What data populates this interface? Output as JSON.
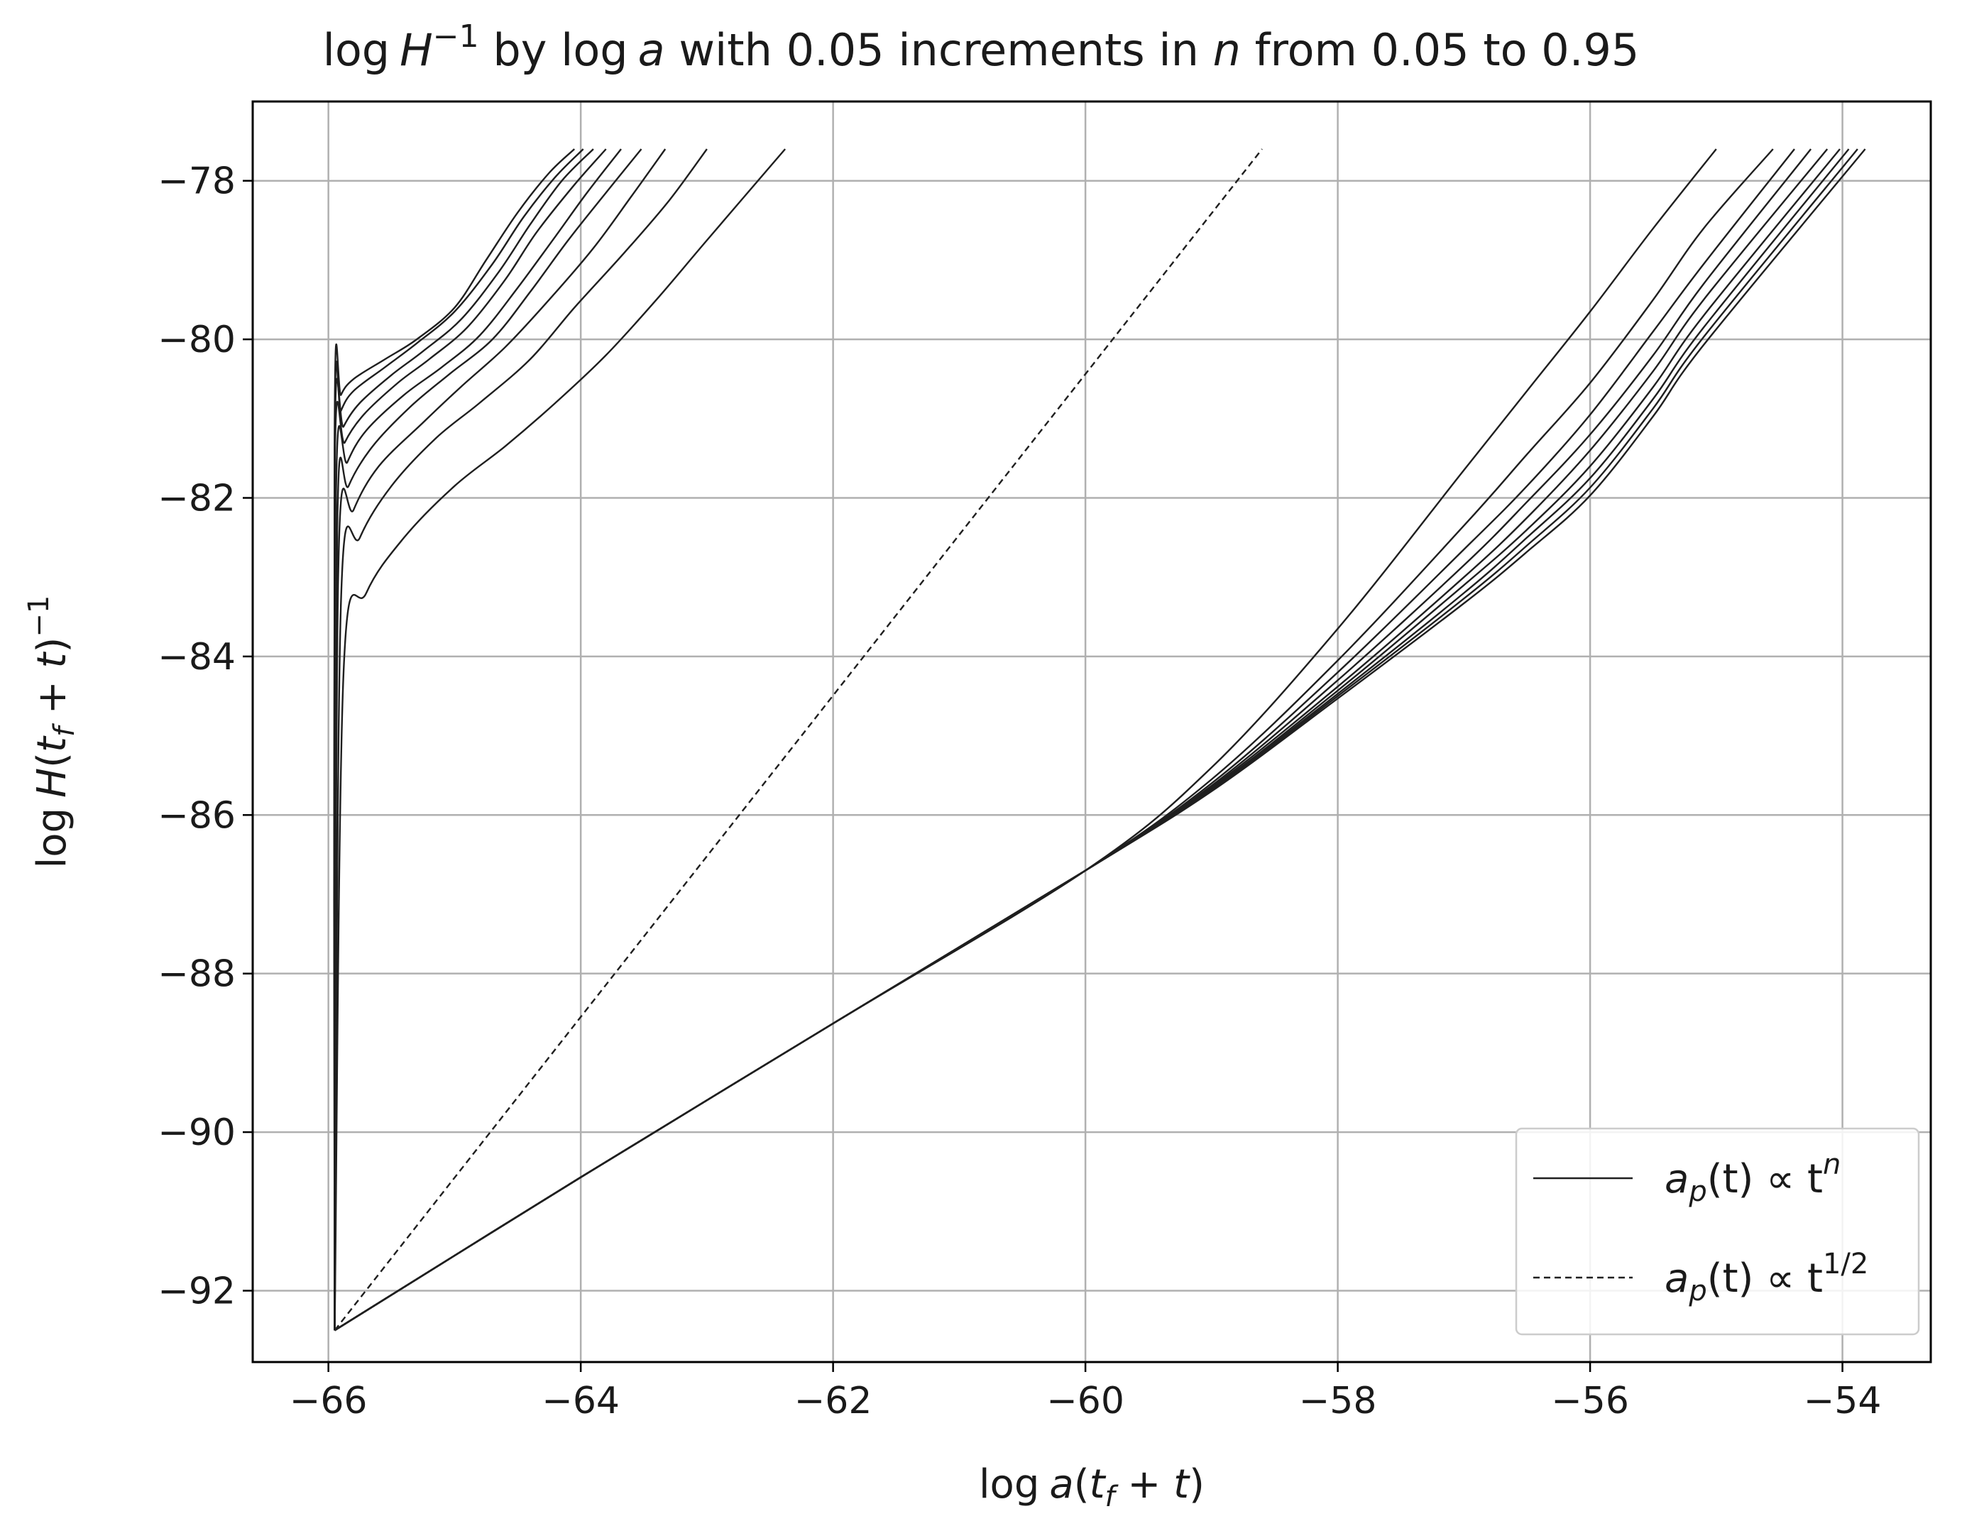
{
  "chart_data": {
    "type": "line",
    "title": {
      "prefix": "log",
      "H": "H",
      "H_sup": "−1",
      "mid": " by log",
      "a": "a",
      "after_a": " with 0.05 increments in ",
      "n": "n",
      "suffix": " from 0.05 to 0.95"
    },
    "xlabel": {
      "log": "log",
      "a": "a",
      "open": "(",
      "t1": "t",
      "sub_f": "f",
      "plus": " + ",
      "t2": "t",
      "close": ")"
    },
    "ylabel": {
      "log": "log",
      "H": "H",
      "open": "(",
      "t1": "t",
      "sub_f": "f",
      "plus": " + ",
      "t2": "t",
      "close": ")",
      "sup": "−1"
    },
    "xlim": [
      -66.6,
      -53.3
    ],
    "ylim": [
      -92.9,
      -77.0
    ],
    "x_ticks": [
      -66,
      -64,
      -62,
      -60,
      -58,
      -56,
      -54
    ],
    "x_tick_labels": [
      "−66",
      "−64",
      "−62",
      "−60",
      "−58",
      "−56",
      "−54"
    ],
    "y_ticks": [
      -78,
      -80,
      -82,
      -84,
      -86,
      -88,
      -90,
      -92
    ],
    "y_tick_labels": [
      "−78",
      "−80",
      "−82",
      "−84",
      "−86",
      "−88",
      "−90",
      "−92"
    ],
    "grid": true,
    "legend_position": "lower-right",
    "legend": [
      {
        "style": "solid",
        "a": "a",
        "sub": "p",
        "paren": "(t) ∝ t",
        "sup": "n"
      },
      {
        "style": "dashed",
        "a": "a",
        "sub": "p",
        "paren": "(t) ∝ t",
        "sup": "1/2"
      }
    ],
    "line_color": "#1f1f1f",
    "series": [
      {
        "group": "upper-left",
        "n": 0.95,
        "x": [
          -65.95,
          -65.95,
          -65.9,
          -65.8,
          -65.55,
          -65.3,
          -65.0,
          -64.75,
          -64.5,
          -64.25,
          -64.05
        ],
        "y": [
          -92.5,
          -81.0,
          -80.7,
          -80.5,
          -80.25,
          -80.0,
          -79.6,
          -79.0,
          -78.4,
          -77.9,
          -77.6
        ]
      },
      {
        "group": "upper-left",
        "n": 0.9,
        "x": [
          -65.95,
          -65.95,
          -65.9,
          -65.8,
          -65.55,
          -65.3,
          -65.0,
          -64.7,
          -64.45,
          -64.2,
          -63.98
        ],
        "y": [
          -92.5,
          -81.2,
          -80.9,
          -80.65,
          -80.35,
          -80.05,
          -79.65,
          -79.05,
          -78.45,
          -77.95,
          -77.6
        ]
      },
      {
        "group": "upper-left",
        "n": 0.85,
        "x": [
          -65.95,
          -65.95,
          -65.88,
          -65.75,
          -65.5,
          -65.25,
          -64.95,
          -64.65,
          -64.4,
          -64.15,
          -63.9
        ],
        "y": [
          -92.5,
          -81.4,
          -81.1,
          -80.8,
          -80.45,
          -80.15,
          -79.75,
          -79.15,
          -78.55,
          -78.0,
          -77.6
        ]
      },
      {
        "group": "upper-left",
        "n": 0.8,
        "x": [
          -65.95,
          -65.95,
          -65.87,
          -65.72,
          -65.45,
          -65.2,
          -64.9,
          -64.6,
          -64.35,
          -64.05,
          -63.8
        ],
        "y": [
          -92.5,
          -81.7,
          -81.3,
          -80.95,
          -80.55,
          -80.25,
          -79.85,
          -79.25,
          -78.65,
          -78.05,
          -77.6
        ]
      },
      {
        "group": "upper-left",
        "n": 0.75,
        "x": [
          -65.95,
          -65.94,
          -65.85,
          -65.7,
          -65.4,
          -65.1,
          -64.8,
          -64.5,
          -64.2,
          -63.95,
          -63.68
        ],
        "y": [
          -92.5,
          -82.0,
          -81.55,
          -81.15,
          -80.7,
          -80.35,
          -79.95,
          -79.35,
          -78.7,
          -78.15,
          -77.6
        ]
      },
      {
        "group": "upper-left",
        "n": 0.7,
        "x": [
          -65.95,
          -65.93,
          -65.84,
          -65.65,
          -65.35,
          -65.05,
          -64.7,
          -64.4,
          -64.1,
          -63.8,
          -63.52
        ],
        "y": [
          -92.5,
          -82.4,
          -81.85,
          -81.35,
          -80.85,
          -80.45,
          -80.0,
          -79.4,
          -78.75,
          -78.15,
          -77.6
        ]
      },
      {
        "group": "upper-left",
        "n": 0.65,
        "x": [
          -65.95,
          -65.92,
          -65.8,
          -65.6,
          -65.25,
          -64.95,
          -64.6,
          -64.25,
          -63.9,
          -63.6,
          -63.33
        ],
        "y": [
          -92.5,
          -82.8,
          -82.15,
          -81.6,
          -81.05,
          -80.6,
          -80.1,
          -79.5,
          -78.85,
          -78.2,
          -77.6
        ]
      },
      {
        "group": "upper-left",
        "n": 0.6,
        "x": [
          -65.95,
          -65.9,
          -65.75,
          -65.5,
          -65.15,
          -64.8,
          -64.4,
          -64.05,
          -63.65,
          -63.3,
          -63.0
        ],
        "y": [
          -92.5,
          -83.3,
          -82.5,
          -81.85,
          -81.25,
          -80.8,
          -80.25,
          -79.6,
          -78.9,
          -78.25,
          -77.6
        ]
      },
      {
        "group": "upper-left",
        "n": 0.55,
        "x": [
          -65.95,
          -65.88,
          -65.7,
          -65.4,
          -65.0,
          -64.6,
          -64.2,
          -63.8,
          -63.4,
          -63.0,
          -62.38
        ],
        "y": [
          -92.5,
          -84.2,
          -83.2,
          -82.5,
          -81.85,
          -81.35,
          -80.8,
          -80.2,
          -79.5,
          -78.75,
          -77.6
        ]
      },
      {
        "group": "lower-right",
        "n": 0.45,
        "x": [
          -65.95,
          -64.0,
          -62.0,
          -60.0,
          -59.0,
          -58.0,
          -57.0,
          -56.5,
          -56.0,
          -55.5,
          -55.0
        ],
        "y": [
          -92.5,
          -90.57,
          -88.63,
          -86.7,
          -85.4,
          -83.65,
          -81.65,
          -80.65,
          -79.65,
          -78.6,
          -77.6
        ]
      },
      {
        "group": "lower-right",
        "n": 0.4,
        "x": [
          -65.95,
          -64.0,
          -62.0,
          -60.0,
          -59.0,
          -58.0,
          -57.0,
          -56.5,
          -56.0,
          -55.5,
          -55.1,
          -54.55
        ],
        "y": [
          -92.5,
          -90.57,
          -88.63,
          -86.7,
          -85.55,
          -84.05,
          -82.35,
          -81.45,
          -80.55,
          -79.5,
          -78.6,
          -77.6
        ]
      },
      {
        "group": "lower-right",
        "n": 0.35,
        "x": [
          -65.95,
          -64.0,
          -62.0,
          -60.0,
          -59.0,
          -58.0,
          -57.0,
          -56.5,
          -56.0,
          -55.5,
          -55.1,
          -54.38
        ],
        "y": [
          -92.5,
          -90.57,
          -88.63,
          -86.7,
          -85.6,
          -84.2,
          -82.65,
          -81.85,
          -80.95,
          -79.9,
          -79.05,
          -77.6
        ]
      },
      {
        "group": "lower-right",
        "n": 0.3,
        "x": [
          -65.95,
          -64.0,
          -62.0,
          -60.0,
          -59.0,
          -58.0,
          -57.0,
          -56.5,
          -56.0,
          -55.5,
          -55.1,
          -54.25
        ],
        "y": [
          -92.5,
          -90.57,
          -88.63,
          -86.7,
          -85.63,
          -84.3,
          -82.85,
          -82.05,
          -81.2,
          -80.2,
          -79.3,
          -77.6
        ]
      },
      {
        "group": "lower-right",
        "n": 0.25,
        "x": [
          -65.95,
          -64.0,
          -62.0,
          -60.0,
          -59.0,
          -58.0,
          -57.0,
          -56.5,
          -56.0,
          -55.5,
          -55.1,
          -54.12
        ],
        "y": [
          -92.5,
          -90.57,
          -88.63,
          -86.7,
          -85.65,
          -84.38,
          -83.0,
          -82.25,
          -81.4,
          -80.4,
          -79.5,
          -77.6
        ]
      },
      {
        "group": "lower-right",
        "n": 0.2,
        "x": [
          -65.95,
          -64.0,
          -62.0,
          -60.0,
          -59.0,
          -58.0,
          -57.0,
          -56.5,
          -56.0,
          -55.5,
          -55.1,
          -54.02
        ],
        "y": [
          -92.5,
          -90.57,
          -88.63,
          -86.7,
          -85.67,
          -84.43,
          -83.1,
          -82.4,
          -81.6,
          -80.6,
          -79.7,
          -77.6
        ]
      },
      {
        "group": "lower-right",
        "n": 0.15,
        "x": [
          -65.95,
          -64.0,
          -62.0,
          -60.0,
          -59.0,
          -58.0,
          -57.0,
          -56.5,
          -56.0,
          -55.5,
          -55.1,
          -53.95
        ],
        "y": [
          -92.5,
          -90.57,
          -88.63,
          -86.7,
          -85.68,
          -84.47,
          -83.2,
          -82.5,
          -81.75,
          -80.75,
          -79.85,
          -77.6
        ]
      },
      {
        "group": "lower-right",
        "n": 0.1,
        "x": [
          -65.95,
          -64.0,
          -62.0,
          -60.0,
          -59.0,
          -58.0,
          -57.0,
          -56.5,
          -56.0,
          -55.5,
          -55.1,
          -53.88
        ],
        "y": [
          -92.5,
          -90.57,
          -88.63,
          -86.7,
          -85.69,
          -84.5,
          -83.27,
          -82.6,
          -81.87,
          -80.87,
          -79.97,
          -77.6
        ]
      },
      {
        "group": "lower-right",
        "n": 0.05,
        "x": [
          -65.95,
          -64.0,
          -62.0,
          -60.0,
          -59.0,
          -58.0,
          -57.0,
          -56.5,
          -56.0,
          -55.5,
          -55.1,
          -53.82
        ],
        "y": [
          -92.5,
          -90.57,
          -88.63,
          -86.7,
          -85.7,
          -84.53,
          -83.33,
          -82.68,
          -81.97,
          -80.97,
          -80.07,
          -77.6
        ]
      }
    ],
    "reference_line": {
      "x": [
        -65.95,
        -58.6
      ],
      "y": [
        -92.5,
        -77.6
      ]
    }
  }
}
